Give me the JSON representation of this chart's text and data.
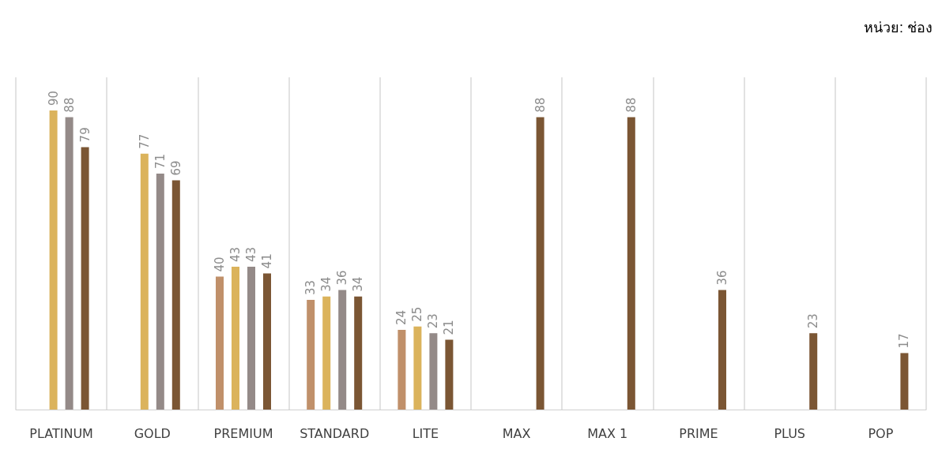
{
  "chart_data": {
    "type": "bar",
    "annotations": [
      "หน่วย: ช่อง"
    ],
    "categories": [
      "PLATINUM",
      "GOLD",
      "PREMIUM",
      "STANDARD",
      "LITE",
      "MAX",
      "MAX 1",
      "PRIME",
      "PLUS",
      "POP"
    ],
    "series": [
      {
        "color": "#c0906a",
        "values": [
          null,
          null,
          40,
          33,
          24,
          null,
          null,
          null,
          null,
          null
        ]
      },
      {
        "color": "#dbb35c",
        "values": [
          90,
          77,
          43,
          34,
          25,
          null,
          null,
          null,
          null,
          null
        ]
      },
      {
        "color": "#948a88",
        "values": [
          88,
          71,
          43,
          36,
          23,
          null,
          null,
          null,
          null,
          null
        ]
      },
      {
        "color": "#7b5634",
        "values": [
          79,
          69,
          41,
          34,
          21,
          88,
          88,
          36,
          23,
          17
        ]
      }
    ],
    "data_labels": true,
    "grid": "x"
  }
}
